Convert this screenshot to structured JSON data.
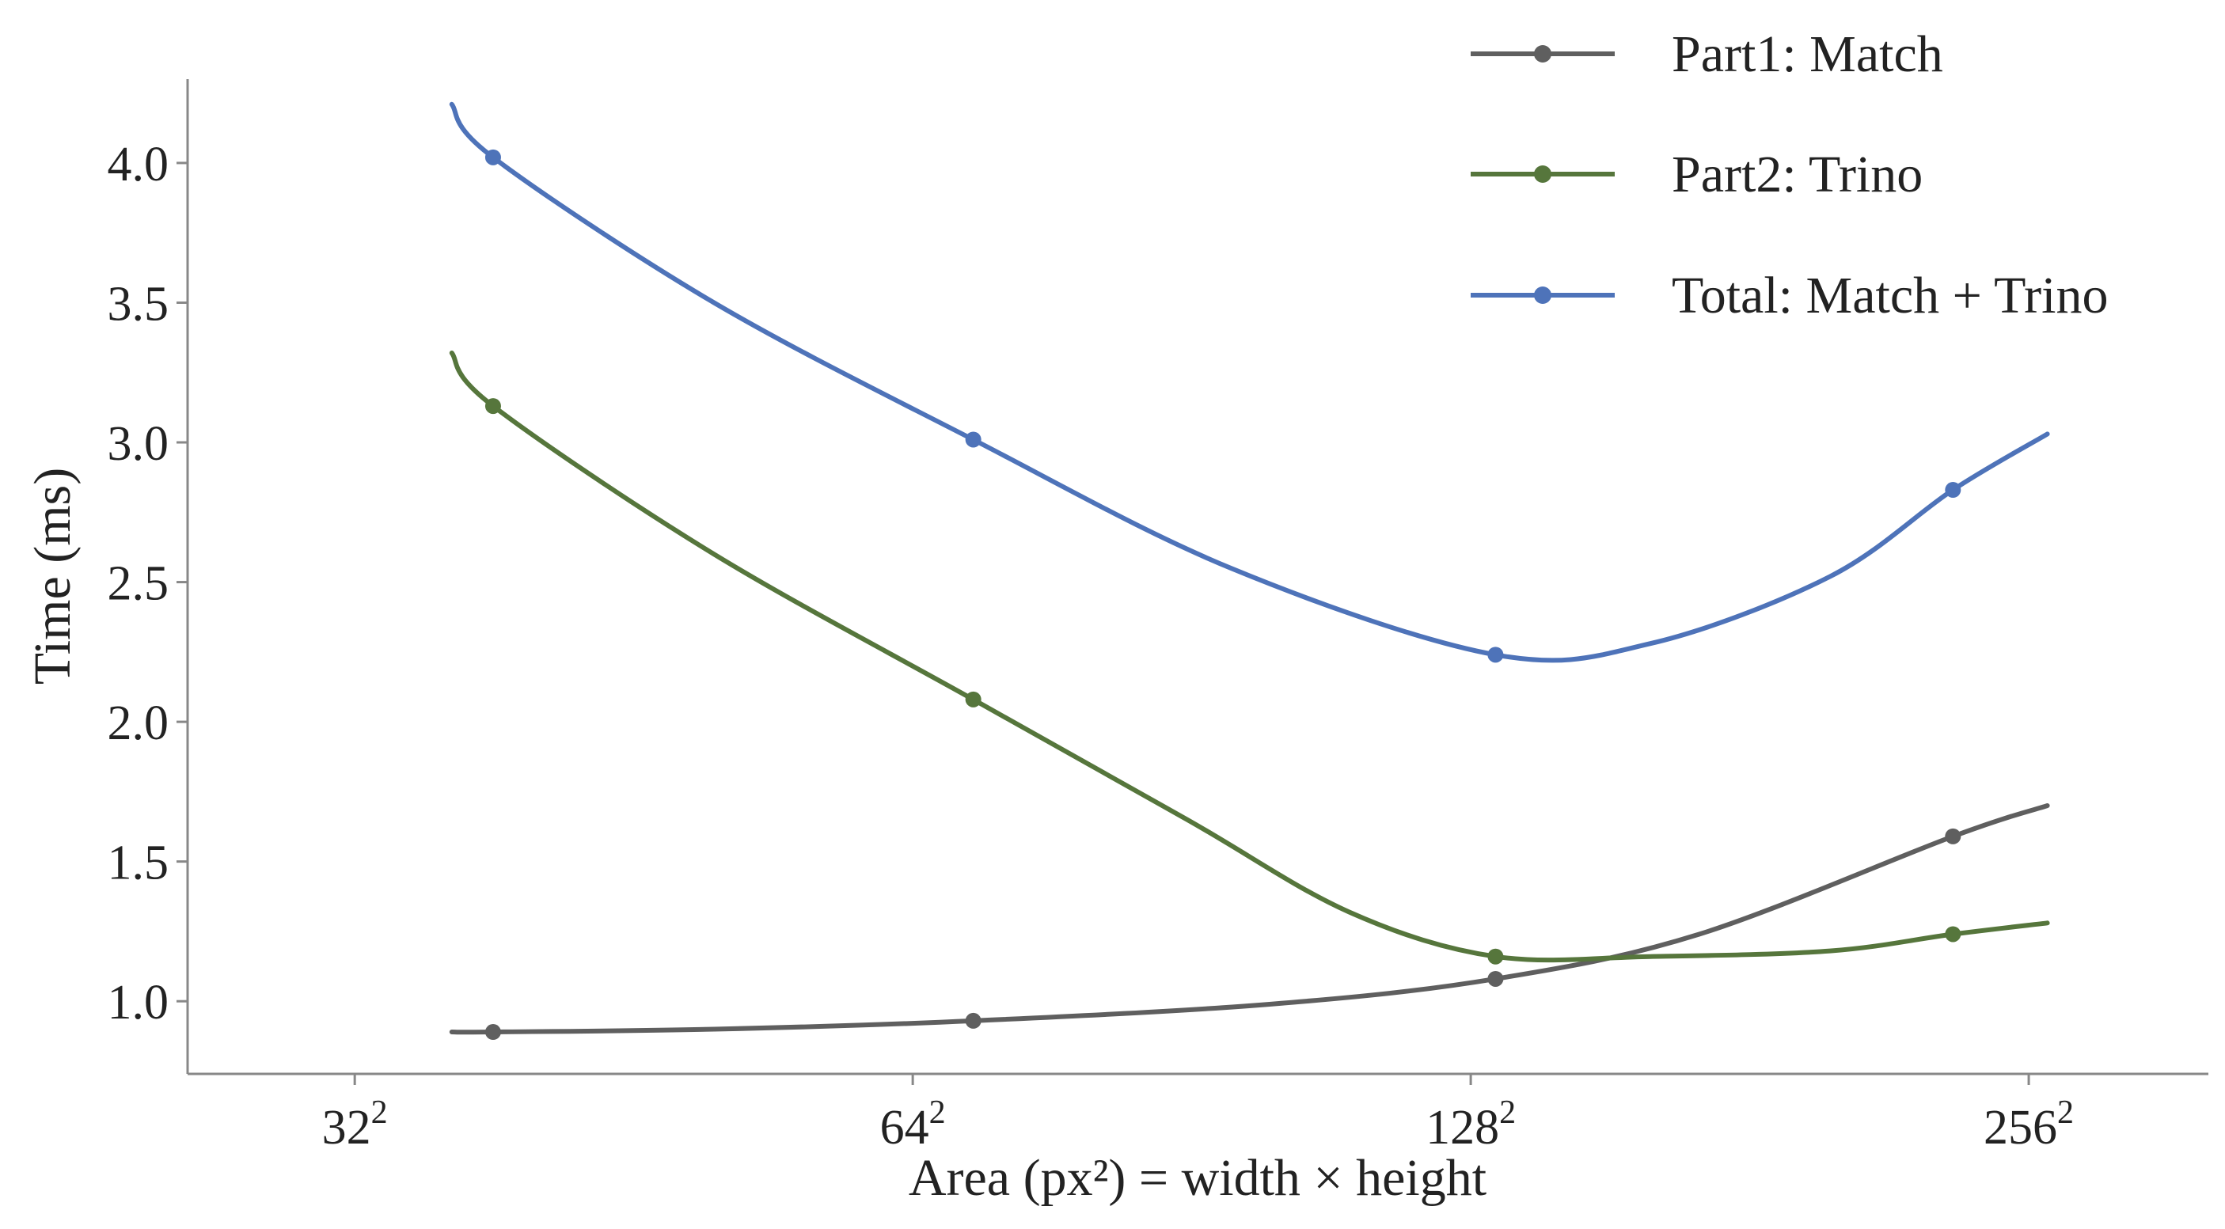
{
  "chart_data": {
    "type": "line",
    "title": "",
    "xlabel": "Area (px²) = width × height",
    "ylabel": "Time (ms)",
    "x_scale": "log2",
    "x_ticks": [
      {
        "value": 32,
        "base": "32",
        "exp": "2"
      },
      {
        "value": 64,
        "base": "64",
        "exp": "2"
      },
      {
        "value": 128,
        "base": "128",
        "exp": "2"
      },
      {
        "value": 256,
        "base": "256",
        "exp": "2"
      }
    ],
    "xlim": [
      26,
      320
    ],
    "ylim": [
      0.74,
      4.3
    ],
    "y_ticks": [
      1.0,
      1.5,
      2.0,
      2.5,
      3.0,
      3.5,
      4.0
    ],
    "grid": false,
    "legend": "top-right",
    "series": [
      {
        "name": "Part1: Match",
        "color": "#5f5f5f",
        "points": [
          [
            38,
            0.89
          ],
          [
            69,
            0.93
          ],
          [
            132,
            1.08
          ],
          [
            233,
            1.59
          ]
        ],
        "curve": [
          [
            36.1,
            0.89
          ],
          [
            38,
            0.89
          ],
          [
            50,
            0.9
          ],
          [
            69,
            0.93
          ],
          [
            100,
            0.99
          ],
          [
            132,
            1.08
          ],
          [
            170,
            1.24
          ],
          [
            233,
            1.59
          ],
          [
            262,
            1.7
          ]
        ]
      },
      {
        "name": "Part2: Trino",
        "color": "#56763c",
        "points": [
          [
            38,
            3.13
          ],
          [
            69,
            2.08
          ],
          [
            132,
            1.16
          ],
          [
            233,
            1.24
          ]
        ],
        "curve": [
          [
            36.1,
            3.32
          ],
          [
            38,
            3.13
          ],
          [
            50,
            2.6
          ],
          [
            69,
            2.08
          ],
          [
            90,
            1.65
          ],
          [
            110,
            1.32
          ],
          [
            132,
            1.16
          ],
          [
            160,
            1.16
          ],
          [
            200,
            1.18
          ],
          [
            233,
            1.24
          ],
          [
            262,
            1.28
          ]
        ]
      },
      {
        "name": "Total: Match + Trino",
        "color": "#4e73b9",
        "points": [
          [
            38,
            4.02
          ],
          [
            69,
            3.01
          ],
          [
            132,
            2.24
          ],
          [
            233,
            2.83
          ]
        ],
        "curve": [
          [
            36.1,
            4.21
          ],
          [
            38,
            4.02
          ],
          [
            50,
            3.5
          ],
          [
            69,
            3.01
          ],
          [
            95,
            2.55
          ],
          [
            132,
            2.24
          ],
          [
            160,
            2.28
          ],
          [
            200,
            2.52
          ],
          [
            233,
            2.83
          ],
          [
            262,
            3.03
          ]
        ]
      }
    ]
  }
}
